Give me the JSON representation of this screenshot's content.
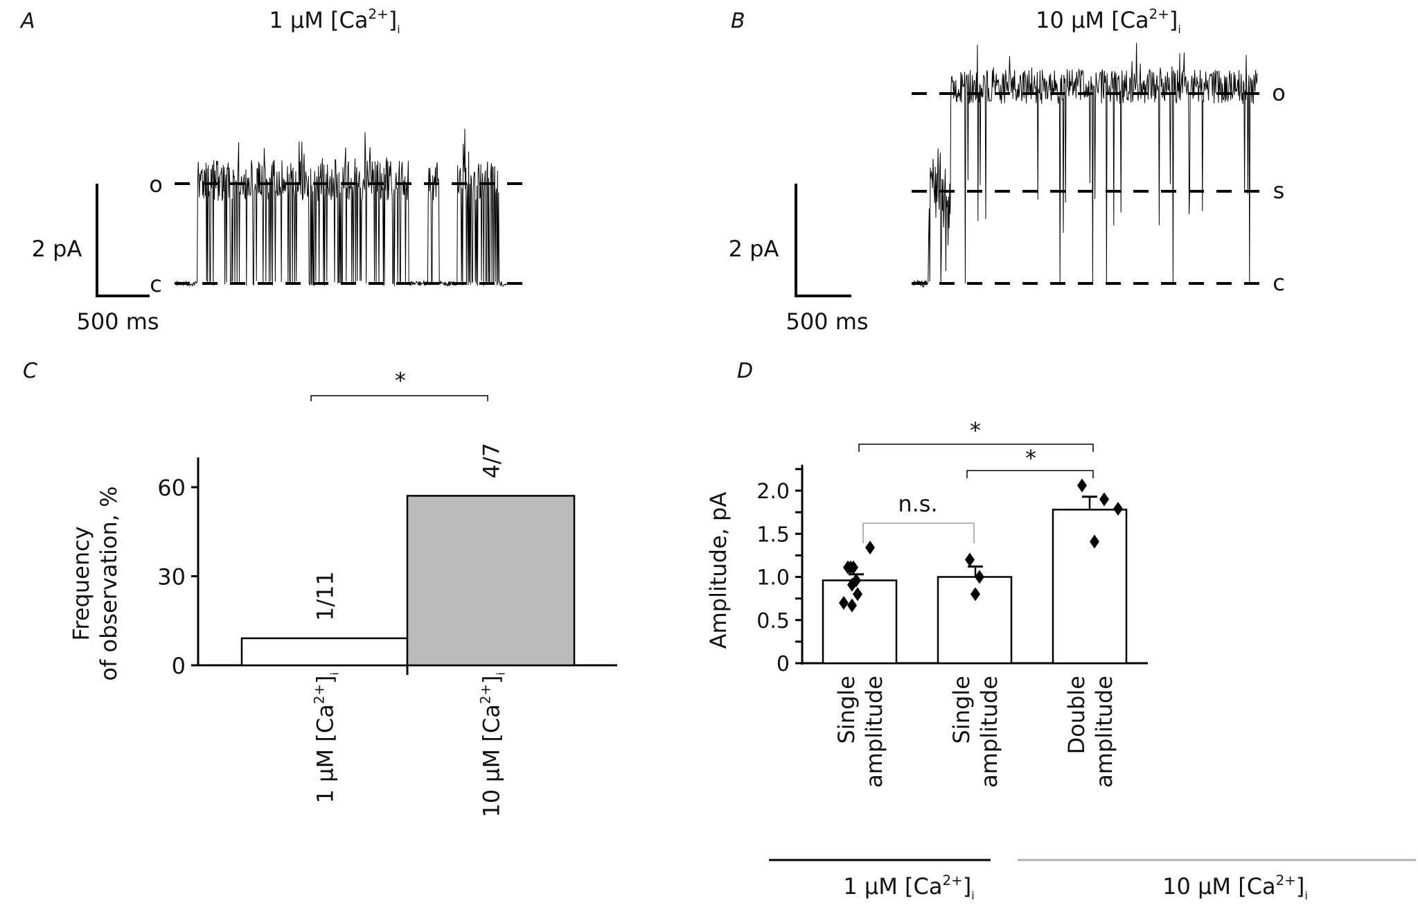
{
  "chart_data": [
    {
      "panel": "A",
      "type": "line",
      "title": "1 μM [Ca2+]i",
      "level_labels": [
        "o",
        "c"
      ],
      "scale_bar": {
        "current": "2 pA",
        "time": "500 ms"
      }
    },
    {
      "panel": "B",
      "type": "line",
      "title": "10 μM [Ca2+]i",
      "level_labels": [
        "o",
        "s",
        "c"
      ],
      "scale_bar": {
        "current": "2 pA",
        "time": "500 ms"
      }
    },
    {
      "panel": "C",
      "type": "bar",
      "ylabel_line1": "Frequency",
      "ylabel_line2": "of observation, %",
      "categories": [
        "1 μM [Ca2+]i",
        "10 μM [Ca2+]i"
      ],
      "values": [
        9.1,
        57.1
      ],
      "bar_labels": [
        "1/11",
        "4/7"
      ],
      "bar_colors": [
        "#ffffff",
        "#bbbbbb"
      ],
      "yticks": [
        "0",
        "30",
        "60"
      ],
      "ylim": [
        0,
        70
      ],
      "significance": "*"
    },
    {
      "panel": "D",
      "type": "bar",
      "ylabel": "Amplitude, pA",
      "categories": [
        {
          "line1": "Single",
          "line2": "amplitude"
        },
        {
          "line1": "Single",
          "line2": "amplitude"
        },
        {
          "line1": "Double",
          "line2": "amplitude"
        }
      ],
      "values": [
        0.96,
        1.0,
        1.78
      ],
      "error_upper": [
        1.03,
        1.12,
        1.93
      ],
      "points": [
        [
          1.11,
          1.11,
          1.11,
          1.34,
          0.96,
          0.91,
          0.8,
          0.7,
          0.67
        ],
        [
          1.2,
          1.0,
          0.8
        ],
        [
          2.06,
          1.9,
          1.79,
          1.41
        ]
      ],
      "yticks": [
        "0",
        "0.5",
        "1.0",
        "1.5",
        "2.0"
      ],
      "ylim": [
        0,
        2.3
      ],
      "comparisons": [
        {
          "label": "n.s.",
          "from": 0,
          "to": 1
        },
        {
          "label": "*",
          "from": 0,
          "to": 2
        },
        {
          "label": "*",
          "from": 1,
          "to": 2
        }
      ],
      "groups": [
        {
          "label": "1 μM [Ca2+]i",
          "color": "#000000"
        },
        {
          "label": "10 μM [Ca2+]i",
          "color": "#b0b0b0"
        }
      ]
    }
  ]
}
